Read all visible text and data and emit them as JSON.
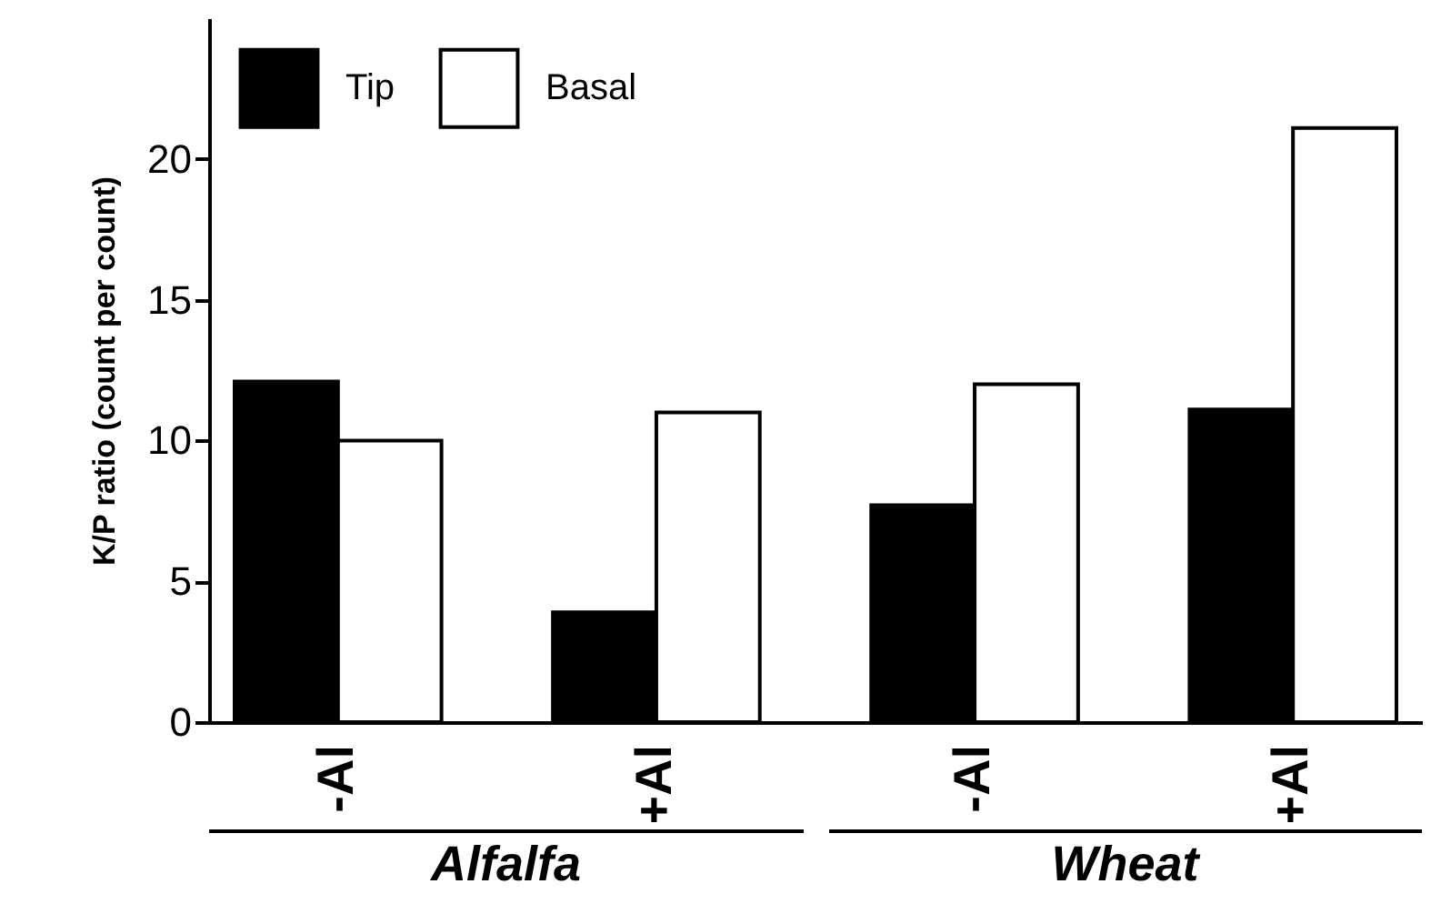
{
  "chart_data": {
    "type": "bar",
    "ylabel": "K/P ratio (count per count)",
    "categories": [
      "-Al",
      "+Al",
      "-Al",
      "+Al"
    ],
    "series": [
      {
        "name": "Tip",
        "color": "#000000",
        "values": [
          12.1,
          3.9,
          7.7,
          11.1
        ]
      },
      {
        "name": "Basal",
        "color": "#ffffff",
        "values": [
          10.0,
          11.0,
          12.0,
          21.1
        ]
      }
    ],
    "ylim": [
      0,
      25
    ],
    "yticks": [
      0,
      5,
      10,
      15,
      20
    ],
    "legend": "top left",
    "annotations": [
      "Alfalfa",
      "Wheat"
    ]
  }
}
